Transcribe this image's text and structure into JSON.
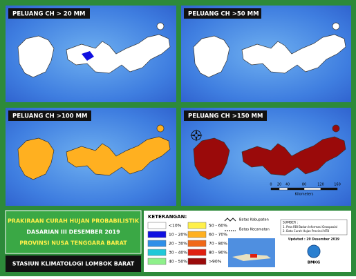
{
  "panels": [
    {
      "title": "PELUANG CH > 20 MM"
    },
    {
      "title": "PELUANG CH >50 MM"
    },
    {
      "title": "PELUANG CH >100 MM"
    },
    {
      "title": "PELUANG CH >150 MM"
    }
  ],
  "info": {
    "lines": [
      "PRAKIRAAN CURAH HUJAN PROBABILISTIK",
      "DASARIAN III DESEMBER 2019",
      "PROVINSI NUSA TENGGARA BARAT"
    ],
    "station": "STASIUN KLIMATOLOGI LOMBOK BARAT"
  },
  "legend": {
    "title": "KETERANGAN:",
    "items": [
      {
        "label": "<10%",
        "color": "#ffffff"
      },
      {
        "label": "10 - 20%",
        "color": "#1010e0"
      },
      {
        "label": "20 - 30%",
        "color": "#2f8fe8"
      },
      {
        "label": "30 - 40%",
        "color": "#20c8d8"
      },
      {
        "label": "40 - 50%",
        "color": "#8ef08a"
      },
      {
        "label": "50 - 60%",
        "color": "#fff04a"
      },
      {
        "label": "60 - 70%",
        "color": "#ffb020"
      },
      {
        "label": "70 - 80%",
        "color": "#f06818"
      },
      {
        "label": "80 - 90%",
        "color": "#e02010"
      },
      {
        "label": ">90%",
        "color": "#9a0a0a"
      }
    ],
    "boundaries": [
      "Batas Kabupaten",
      "Batas Kecamatan"
    ]
  },
  "source": {
    "title": "SUMBER :",
    "lines": [
      "1. Peta RBI Badan Informasi Geospasial",
      "2. Data Curah Hujan Provinsi NTB"
    ],
    "updated": "Updated : 20 Desember 2019",
    "logo": "BMKG"
  },
  "scale": {
    "ticks": [
      0,
      20,
      40,
      80,
      120,
      160
    ],
    "unit": "Kilometers"
  }
}
